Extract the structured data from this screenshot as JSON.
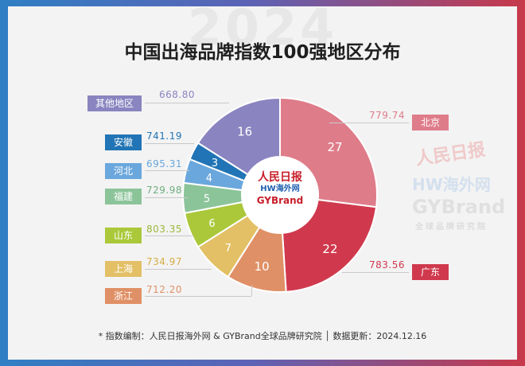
{
  "watermark_year": "2024",
  "title": "中国出海品牌指数100强地区分布",
  "center_logo": {
    "text1": "人民日报",
    "text2": "HW海外网",
    "text3": "GYBrand"
  },
  "side_watermarks": {
    "w1": "人民日报",
    "w2": "HW海外网",
    "w3": "GYBrand",
    "w4": "全球品牌研究院"
  },
  "chart_data": {
    "type": "pie",
    "subtype": "donut",
    "categories": [
      "北京",
      "广东",
      "浙江",
      "上海",
      "山东",
      "福建",
      "河北",
      "安徽",
      "其他地区"
    ],
    "values": [
      27,
      22,
      10,
      7,
      6,
      5,
      4,
      3,
      16
    ],
    "index_values": [
      "779.74",
      "783.56",
      "712.20",
      "734.97",
      "803.35",
      "729.98",
      "695.31",
      "741.19",
      "668.80"
    ],
    "colors": [
      "#df7c8a",
      "#d0394d",
      "#e09066",
      "#e3c066",
      "#aac83a",
      "#8cc49a",
      "#6aa7dd",
      "#2174b5",
      "#8a84c0"
    ],
    "value_colors": [
      "#df7c8a",
      "#d0394d",
      "#e09066",
      "#e3c066",
      "#9bb83a",
      "#6eae80",
      "#6aa7dd",
      "#2174b5",
      "#8a84c0"
    ]
  },
  "footer": "*  指数编制：人民日报海外网 & GYBrand全球品牌研究院 │ 数据更新：2024.12.16"
}
